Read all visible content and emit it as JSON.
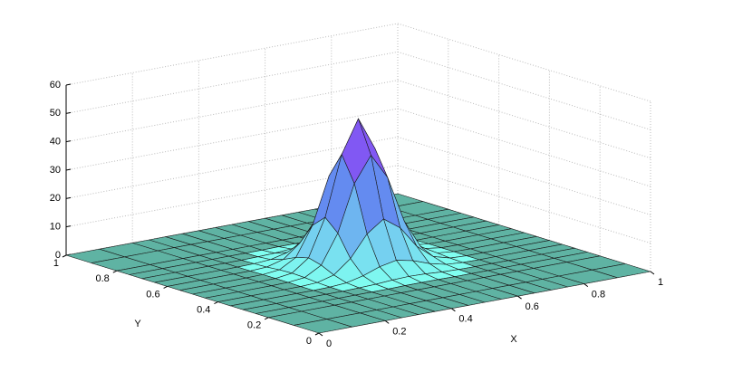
{
  "chart_data": {
    "type": "surface",
    "xlabel": "X",
    "ylabel": "Y",
    "x": [
      0,
      0.1,
      0.2,
      0.25,
      0.3,
      0.35,
      0.4,
      0.45,
      0.5,
      0.55,
      0.6,
      0.65,
      0.7,
      0.75,
      0.8,
      0.9,
      1
    ],
    "y": [
      0,
      0.1,
      0.2,
      0.25,
      0.3,
      0.35,
      0.4,
      0.45,
      0.5,
      0.55,
      0.6,
      0.65,
      0.7,
      0.75,
      0.8,
      0.9,
      1
    ],
    "z": [
      [
        0,
        0,
        0,
        0,
        0,
        0,
        0,
        0,
        0,
        0,
        0,
        0,
        0,
        0,
        0,
        0,
        0
      ],
      [
        0,
        0,
        0,
        0,
        0,
        0,
        0,
        0,
        0,
        0,
        0,
        0,
        0,
        0,
        0,
        0,
        0
      ],
      [
        0,
        0,
        0,
        0,
        0,
        0,
        0,
        0,
        0,
        0,
        0,
        0,
        0,
        0,
        0,
        0,
        0
      ],
      [
        0,
        0,
        0,
        0,
        0,
        0,
        0,
        0.1,
        0.1,
        0.1,
        0,
        0,
        0,
        0,
        0,
        0,
        0
      ],
      [
        0,
        0,
        0,
        0,
        0,
        0.1,
        0.3,
        0.7,
        0.9,
        0.7,
        0.3,
        0.1,
        0,
        0,
        0,
        0,
        0
      ],
      [
        0,
        0,
        0,
        0,
        0.1,
        0.5,
        1.9,
        4.0,
        5.2,
        4.0,
        1.9,
        0.5,
        0.1,
        0,
        0,
        0,
        0
      ],
      [
        0,
        0,
        0,
        0,
        0.3,
        1.9,
        6.6,
        14.2,
        18.4,
        14.2,
        6.6,
        1.9,
        0.3,
        0,
        0,
        0,
        0
      ],
      [
        0,
        0,
        0,
        0.1,
        0.7,
        4.0,
        14.2,
        30.6,
        39.5,
        30.6,
        14.2,
        4.0,
        0.7,
        0.1,
        0,
        0,
        0
      ],
      [
        0,
        0,
        0,
        0.1,
        0.9,
        5.2,
        18.4,
        39.5,
        51,
        39.5,
        18.4,
        5.2,
        0.9,
        0.1,
        0,
        0,
        0
      ],
      [
        0,
        0,
        0,
        0.1,
        0.7,
        4.0,
        14.2,
        30.6,
        39.5,
        30.6,
        14.2,
        4.0,
        0.7,
        0.1,
        0,
        0,
        0
      ],
      [
        0,
        0,
        0,
        0,
        0.3,
        1.9,
        6.6,
        14.2,
        18.4,
        14.2,
        6.6,
        1.9,
        0.3,
        0,
        0,
        0,
        0
      ],
      [
        0,
        0,
        0,
        0,
        0.1,
        0.5,
        1.9,
        4.0,
        5.2,
        4.0,
        1.9,
        0.5,
        0.1,
        0,
        0,
        0,
        0
      ],
      [
        0,
        0,
        0,
        0,
        0,
        0.1,
        0.3,
        0.7,
        0.9,
        0.7,
        0.3,
        0.1,
        0,
        0,
        0,
        0,
        0
      ],
      [
        0,
        0,
        0,
        0,
        0,
        0,
        0,
        0.1,
        0.1,
        0.1,
        0,
        0,
        0,
        0,
        0,
        0,
        0
      ],
      [
        0,
        0,
        0,
        0,
        0,
        0,
        0,
        0,
        0,
        0,
        0,
        0,
        0,
        0,
        0,
        0,
        0
      ],
      [
        0,
        0,
        0,
        0,
        0,
        0,
        0,
        0,
        0,
        0,
        0,
        0,
        0,
        0,
        0,
        0,
        0
      ],
      [
        0,
        0,
        0,
        0,
        0,
        0,
        0,
        0,
        0,
        0,
        0,
        0,
        0,
        0,
        0,
        0,
        0
      ]
    ],
    "xlim": [
      0,
      1
    ],
    "ylim": [
      0,
      1
    ],
    "zlim": [
      0,
      60
    ],
    "xticks": [
      0,
      0.2,
      0.4,
      0.6,
      0.8,
      1
    ],
    "yticks": [
      0,
      0.2,
      0.4,
      0.6,
      0.8,
      1
    ],
    "zticks": [
      0,
      10,
      20,
      30,
      40,
      50,
      60
    ],
    "grid": true
  }
}
